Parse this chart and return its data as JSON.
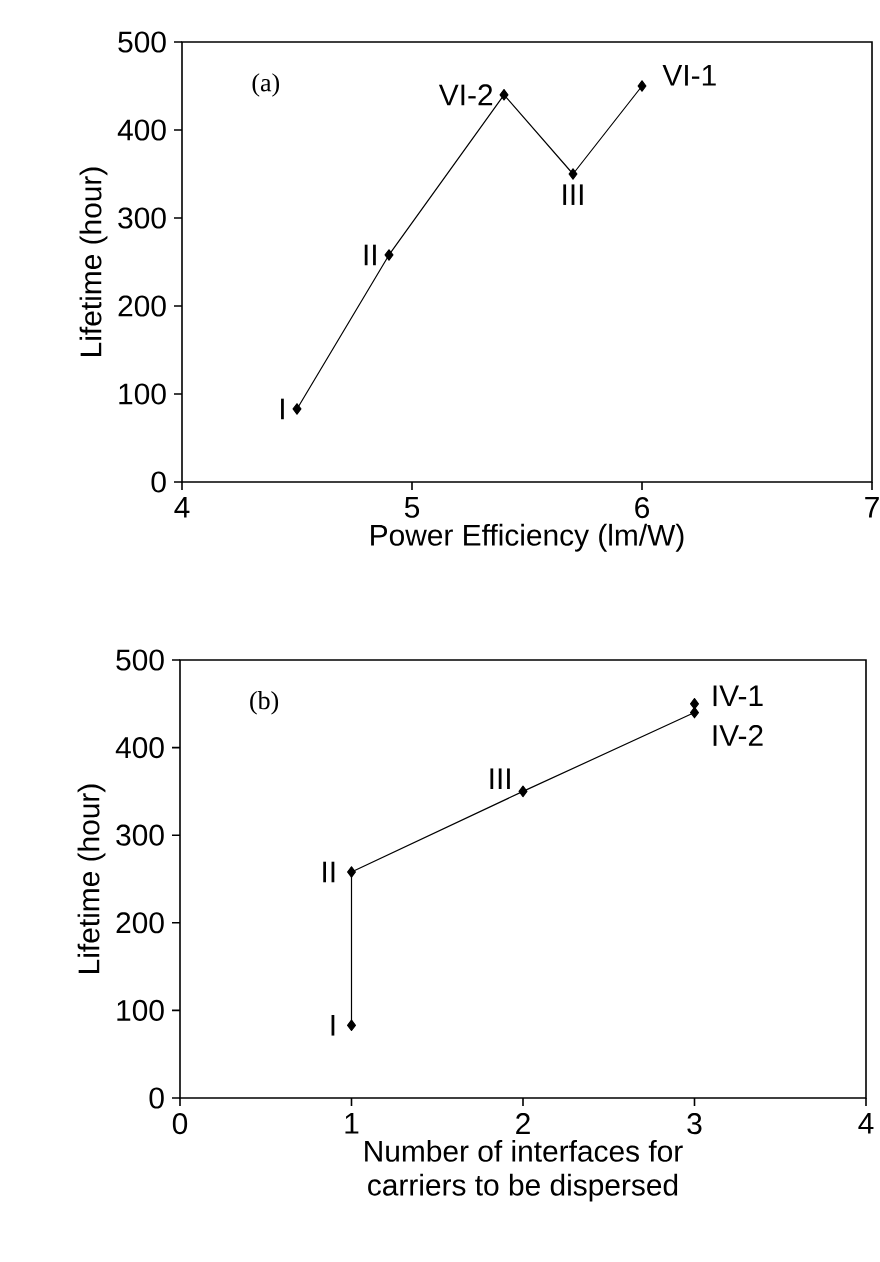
{
  "chart_data": [
    {
      "type": "line",
      "x": [
        4.5,
        4.9,
        5.4,
        5.7,
        6.0
      ],
      "values": [
        83,
        258,
        440,
        350,
        450
      ],
      "color": "#000000",
      "marker": "diamond",
      "line_style": "solid",
      "xlim": [
        4,
        7
      ],
      "ylim": [
        0,
        500
      ],
      "xticks": [
        4,
        5,
        6,
        7
      ],
      "yticks": [
        0,
        100,
        200,
        300,
        400,
        500
      ],
      "xlabel": "Power Efficiency (lm/W)",
      "ylabel": "Lifetime (hour)",
      "annotations": [
        "(a)",
        {
          "text": "I",
          "x": 4.5,
          "y": 83
        },
        {
          "text": "II",
          "x": 4.9,
          "y": 258
        },
        {
          "text": "VI-2",
          "x": 5.4,
          "y": 440
        },
        {
          "text": "III",
          "x": 5.7,
          "y": 350
        },
        {
          "text": "VI-1",
          "x": 6.0,
          "y": 450
        }
      ]
    },
    {
      "type": "line",
      "x": [
        1,
        1,
        2,
        3,
        3
      ],
      "values": [
        83,
        258,
        350,
        440,
        450
      ],
      "color": "#000000",
      "marker": "diamond",
      "line_style": "solid",
      "xlim": [
        0,
        4
      ],
      "ylim": [
        0,
        500
      ],
      "xticks": [
        0,
        1,
        2,
        3,
        4
      ],
      "yticks": [
        0,
        100,
        200,
        300,
        400,
        500
      ],
      "xlabel": "Number of interfaces for carriers to be dispersed",
      "ylabel": "Lifetime (hour)",
      "annotations": [
        "(b)",
        {
          "text": "I",
          "x": 1,
          "y": 83
        },
        {
          "text": "II",
          "x": 1,
          "y": 258
        },
        {
          "text": "III",
          "x": 2,
          "y": 350
        },
        {
          "text": "IV-1",
          "x": 3,
          "y": 450
        },
        {
          "text": "IV-2",
          "x": 3,
          "y": 440
        }
      ]
    }
  ]
}
